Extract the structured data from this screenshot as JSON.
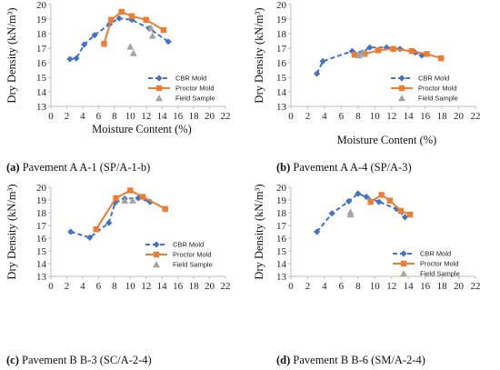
{
  "colors": {
    "cbr": "#4472C4",
    "proctor": "#ED7D31",
    "field": "#A5A5A5",
    "axis": "#BFBFBF"
  },
  "chart_data": [
    {
      "type": "scatter",
      "panel": "a",
      "caption_label": "(a)",
      "caption_text": "Pavement A A-1 (SP/A-1-b)",
      "xlabel": "Moisture Content (%)",
      "ylabel": "Dry Density (kN/m³)",
      "xlim": [
        0,
        22
      ],
      "ylim": [
        13,
        20
      ],
      "xticks": [
        0,
        2,
        4,
        6,
        8,
        10,
        12,
        14,
        16,
        18,
        20,
        22
      ],
      "yticks": [
        13,
        14,
        15,
        16,
        17,
        18,
        19,
        20
      ],
      "legend_position": "bottom-right",
      "series": [
        {
          "name": "CBR Mold",
          "style": "dashed-diamond",
          "points": [
            [
              2.4,
              16.25
            ],
            [
              3.2,
              16.3
            ],
            [
              4.2,
              17.25
            ],
            [
              5.5,
              17.9
            ],
            [
              7.4,
              18.65
            ],
            [
              8.6,
              19.05
            ],
            [
              10.2,
              18.95
            ],
            [
              12.4,
              18.35
            ],
            [
              14.8,
              17.45
            ]
          ]
        },
        {
          "name": "Proctor Mold",
          "style": "solid-square",
          "points": [
            [
              6.7,
              17.3
            ],
            [
              7.6,
              18.95
            ],
            [
              8.9,
              19.5
            ],
            [
              10.2,
              19.2
            ],
            [
              12.0,
              18.95
            ],
            [
              14.2,
              18.25
            ]
          ]
        },
        {
          "name": "Field Sample",
          "style": "triangle",
          "points": [
            [
              10.0,
              17.1
            ],
            [
              10.4,
              16.65
            ],
            [
              12.6,
              18.4
            ],
            [
              12.8,
              17.85
            ]
          ]
        }
      ]
    },
    {
      "type": "scatter",
      "panel": "b",
      "caption_label": "(b)",
      "caption_text": "Pavement A A-4 (SP/A-3)",
      "xlabel": "Moisture Content (%)",
      "ylabel": "Dry Density (kN/m³)",
      "xlim": [
        0,
        22
      ],
      "ylim": [
        13,
        20
      ],
      "xticks": [
        0,
        2,
        4,
        6,
        8,
        10,
        12,
        14,
        16,
        18,
        20,
        22
      ],
      "yticks": [
        13,
        14,
        15,
        16,
        17,
        18,
        19,
        20
      ],
      "legend_position": "bottom-right",
      "series": [
        {
          "name": "CBR Mold",
          "style": "dashed-diamond",
          "points": [
            [
              3.1,
              15.25
            ],
            [
              3.8,
              16.1
            ],
            [
              7.3,
              16.8
            ],
            [
              8.5,
              16.7
            ],
            [
              9.4,
              17.05
            ],
            [
              11.4,
              17.05
            ],
            [
              13.0,
              16.95
            ],
            [
              14.8,
              16.7
            ],
            [
              15.6,
              16.5
            ]
          ]
        },
        {
          "name": "Proctor Mold",
          "style": "solid-square",
          "points": [
            [
              7.6,
              16.55
            ],
            [
              8.8,
              16.6
            ],
            [
              10.4,
              16.85
            ],
            [
              12.2,
              16.95
            ],
            [
              14.4,
              16.8
            ],
            [
              16.2,
              16.6
            ],
            [
              17.9,
              16.3
            ]
          ]
        },
        {
          "name": "Field Sample",
          "style": "triangle",
          "points": [
            [
              8.1,
              16.5
            ],
            [
              8.5,
              16.65
            ]
          ]
        }
      ]
    },
    {
      "type": "scatter",
      "panel": "c",
      "caption_label": "(c)",
      "caption_text": "Pavement B B-3 (SC/A-2-4)",
      "xlabel": "",
      "ylabel": "Dry Density (kN/m³)",
      "xlim": [
        0,
        22
      ],
      "ylim": [
        13,
        20
      ],
      "xticks": [
        0,
        2,
        4,
        6,
        8,
        10,
        12,
        14,
        16,
        18,
        20,
        22
      ],
      "yticks": [
        13,
        14,
        15,
        16,
        17,
        18,
        19,
        20
      ],
      "legend_position": "bottom-right",
      "series": [
        {
          "name": "CBR Mold",
          "style": "dashed-diamond",
          "points": [
            [
              2.5,
              16.5
            ],
            [
              4.9,
              16.05
            ],
            [
              7.3,
              17.2
            ],
            [
              8.1,
              18.8
            ],
            [
              9.3,
              19.1
            ],
            [
              11.0,
              19.15
            ],
            [
              12.5,
              18.85
            ]
          ]
        },
        {
          "name": "Proctor Mold",
          "style": "solid-square",
          "points": [
            [
              5.7,
              16.7
            ],
            [
              8.2,
              19.15
            ],
            [
              10.0,
              19.75
            ],
            [
              11.6,
              19.25
            ],
            [
              14.4,
              18.3
            ]
          ]
        },
        {
          "name": "Field Sample",
          "style": "triangle",
          "points": [
            [
              9.3,
              18.95
            ],
            [
              10.3,
              18.95
            ]
          ]
        }
      ]
    },
    {
      "type": "scatter",
      "panel": "d",
      "caption_label": "(d)",
      "caption_text": "Pavement B B-6 (SM/A-2-4)",
      "xlabel": "",
      "ylabel": "Dry Density (kN/m³)",
      "xlim": [
        0,
        22
      ],
      "ylim": [
        13,
        20
      ],
      "xticks": [
        0,
        2,
        4,
        6,
        8,
        10,
        12,
        14,
        16,
        18,
        20,
        22
      ],
      "yticks": [
        13,
        14,
        15,
        16,
        17,
        18,
        19,
        20
      ],
      "legend_position": "bottom-right",
      "series": [
        {
          "name": "CBR Mold",
          "style": "dashed-diamond",
          "points": [
            [
              3.1,
              16.5
            ],
            [
              4.9,
              17.95
            ],
            [
              6.9,
              18.9
            ],
            [
              8.0,
              19.5
            ],
            [
              9.0,
              19.25
            ],
            [
              10.5,
              18.85
            ],
            [
              12.6,
              18.3
            ],
            [
              13.6,
              17.65
            ]
          ]
        },
        {
          "name": "Proctor Mold",
          "style": "solid-square",
          "points": [
            [
              9.5,
              18.85
            ],
            [
              10.8,
              19.4
            ],
            [
              11.8,
              18.95
            ],
            [
              13.1,
              18.15
            ],
            [
              14.2,
              17.85
            ]
          ]
        },
        {
          "name": "Field Sample",
          "style": "triangle",
          "points": [
            [
              7.1,
              18.05
            ],
            [
              7.1,
              17.85
            ]
          ]
        }
      ]
    }
  ]
}
